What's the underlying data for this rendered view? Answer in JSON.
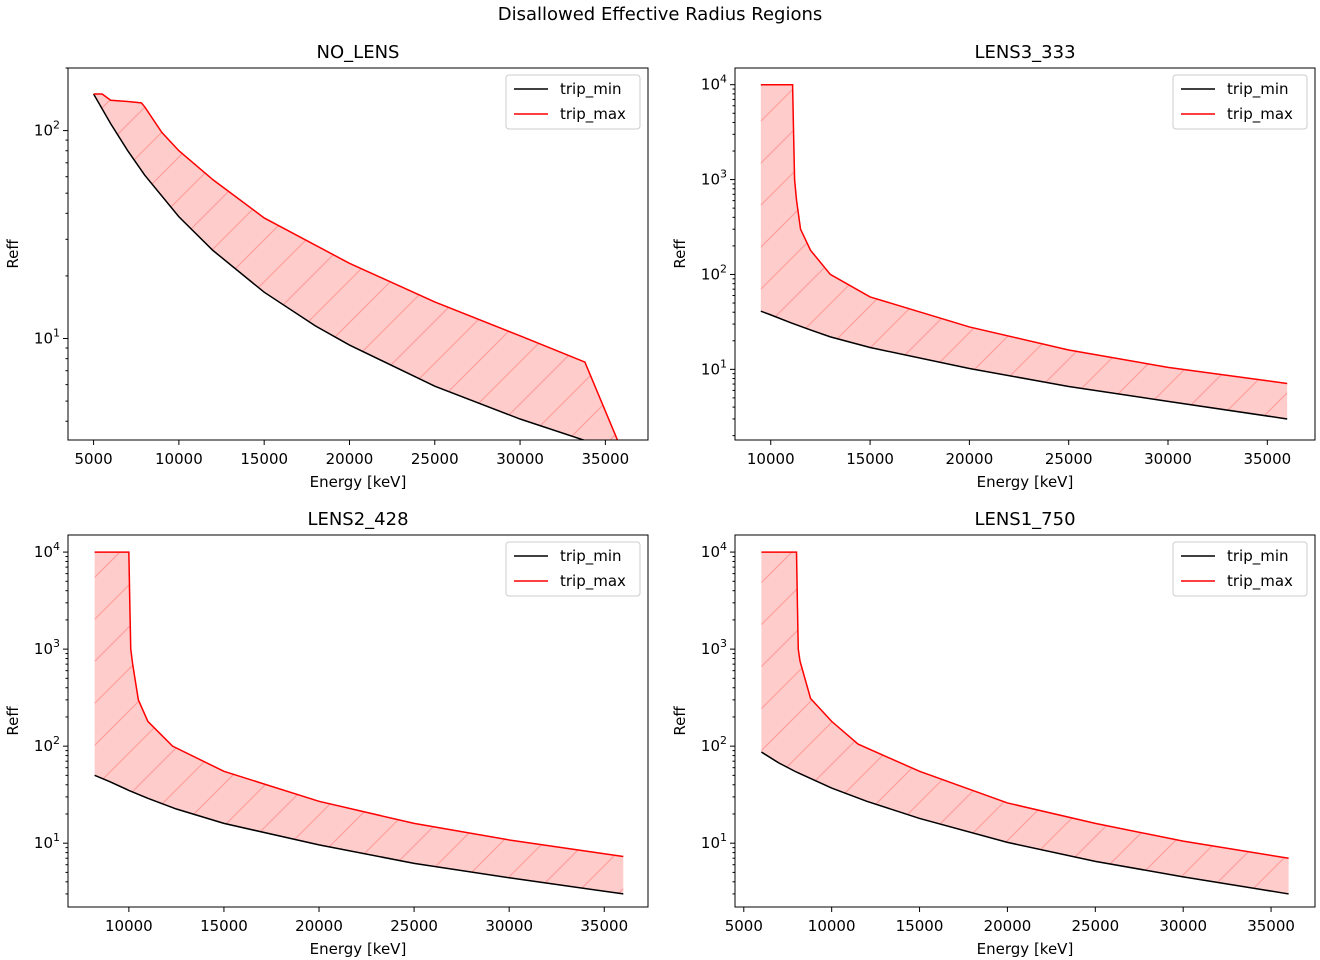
{
  "suptitle": "Disallowed Effective Radius Regions",
  "colors": {
    "trip_min": "#000000",
    "trip_max": "#ff0000",
    "fill": "#ffcccc",
    "hatch": "#ff9999"
  },
  "chart_data": [
    {
      "type": "area",
      "title": "NO_LENS",
      "xlabel": "Energy [keV]",
      "ylabel": "Reff",
      "yscale": "log",
      "xlim": [
        3500,
        37500
      ],
      "ylim": [
        3.25,
        200
      ],
      "xticks": [
        5000,
        10000,
        15000,
        20000,
        25000,
        30000,
        35000
      ],
      "yticks": [
        10,
        100
      ],
      "ytick_labels": [
        [
          "10",
          "1"
        ],
        [
          "10",
          "2"
        ]
      ],
      "legend": {
        "position": "top-right",
        "entries": [
          "trip_min",
          "trip_max"
        ]
      },
      "series": [
        {
          "name": "trip_min",
          "x": [
            5000,
            6000,
            7000,
            8000,
            10000,
            12000,
            15000,
            18000,
            20000,
            25000,
            30000,
            35000,
            36000
          ],
          "y": [
            150,
            108,
            80,
            61,
            38.5,
            26.5,
            16.7,
            11.5,
            9.3,
            5.9,
            4.1,
            3.0,
            2.85
          ]
        },
        {
          "name": "trip_max",
          "x": [
            5000,
            5500,
            6000,
            7000,
            7800,
            8000,
            9000,
            10000,
            12000,
            15000,
            20000,
            25000,
            30000,
            33800,
            36000
          ],
          "y": [
            150,
            150,
            140,
            138,
            136,
            130,
            98,
            80,
            58,
            38,
            23,
            15,
            10.3,
            7.7,
            2.85
          ]
        }
      ]
    },
    {
      "type": "area",
      "title": "LENS3_333",
      "xlabel": "Energy [keV]",
      "ylabel": "Reff",
      "yscale": "log",
      "xlim": [
        8200,
        37400
      ],
      "ylim": [
        1.8,
        15000
      ],
      "xticks": [
        10000,
        15000,
        20000,
        25000,
        30000,
        35000
      ],
      "yticks": [
        10,
        100,
        1000,
        10000
      ],
      "ytick_labels": [
        [
          "10",
          "1"
        ],
        [
          "10",
          "2"
        ],
        [
          "10",
          "3"
        ],
        [
          "10",
          "4"
        ]
      ],
      "legend": {
        "position": "top-right",
        "entries": [
          "trip_min",
          "trip_max"
        ]
      },
      "series": [
        {
          "name": "trip_min",
          "x": [
            9500,
            10000,
            11000,
            12000,
            13000,
            15000,
            20000,
            25000,
            30000,
            36000
          ],
          "y": [
            41,
            37.5,
            31,
            26,
            22,
            17,
            10.2,
            6.6,
            4.6,
            3.0
          ]
        },
        {
          "name": "trip_max",
          "x": [
            9500,
            11100,
            11150,
            11200,
            11300,
            11500,
            12000,
            13000,
            15000,
            20000,
            25000,
            30000,
            36000
          ],
          "y": [
            10000,
            10000,
            3000,
            1000,
            600,
            300,
            180,
            100,
            58,
            28,
            16,
            10.5,
            7.1
          ]
        }
      ]
    },
    {
      "type": "area",
      "title": "LENS2_428",
      "xlabel": "Energy [keV]",
      "ylabel": "Reff",
      "yscale": "log",
      "xlim": [
        6800,
        37300
      ],
      "ylim": [
        2.2,
        15000
      ],
      "xticks": [
        10000,
        15000,
        20000,
        25000,
        30000,
        35000
      ],
      "yticks": [
        10,
        100,
        1000,
        10000
      ],
      "ytick_labels": [
        [
          "10",
          "1"
        ],
        [
          "10",
          "2"
        ],
        [
          "10",
          "3"
        ],
        [
          "10",
          "4"
        ]
      ],
      "legend": {
        "position": "top-right",
        "entries": [
          "trip_min",
          "trip_max"
        ]
      },
      "series": [
        {
          "name": "trip_min",
          "x": [
            8200,
            9000,
            10000,
            11000,
            12500,
            15000,
            20000,
            25000,
            30000,
            36000
          ],
          "y": [
            50,
            43,
            35,
            29,
            22.5,
            16,
            9.6,
            6.2,
            4.4,
            3.0
          ]
        },
        {
          "name": "trip_max",
          "x": [
            8200,
            10000,
            10050,
            10100,
            10200,
            10500,
            11000,
            12300,
            15000,
            20000,
            25000,
            30000,
            36000
          ],
          "y": [
            10000,
            10000,
            3000,
            1000,
            700,
            300,
            180,
            100,
            55,
            27,
            16,
            10.8,
            7.3
          ]
        }
      ]
    },
    {
      "type": "area",
      "title": "LENS1_750",
      "xlabel": "Energy [keV]",
      "ylabel": "Reff",
      "yscale": "log",
      "xlim": [
        4500,
        37500
      ],
      "ylim": [
        2.2,
        15000
      ],
      "xticks": [
        5000,
        10000,
        15000,
        20000,
        25000,
        30000,
        35000
      ],
      "yticks": [
        10,
        100,
        1000,
        10000
      ],
      "ytick_labels": [
        [
          "10",
          "1"
        ],
        [
          "10",
          "2"
        ],
        [
          "10",
          "3"
        ],
        [
          "10",
          "4"
        ]
      ],
      "legend": {
        "position": "top-right",
        "entries": [
          "trip_min",
          "trip_max"
        ]
      },
      "series": [
        {
          "name": "trip_min",
          "x": [
            6000,
            7000,
            8000,
            10000,
            12000,
            15000,
            20000,
            25000,
            30000,
            36000
          ],
          "y": [
            87,
            67,
            54,
            37,
            27,
            18,
            10.2,
            6.5,
            4.5,
            3.0
          ]
        },
        {
          "name": "trip_max",
          "x": [
            6000,
            8000,
            8050,
            8100,
            8200,
            8800,
            10000,
            11500,
            15000,
            20000,
            25000,
            30000,
            36000
          ],
          "y": [
            10000,
            10000,
            3000,
            1000,
            750,
            310,
            180,
            105,
            55,
            26,
            16,
            10.5,
            7.0
          ]
        }
      ]
    }
  ]
}
